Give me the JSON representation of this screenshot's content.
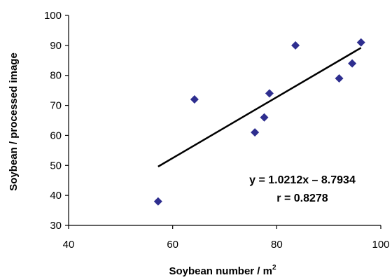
{
  "chart_data": {
    "type": "scatter",
    "xlabel": "Soybean number / m",
    "xlabel_sup": "2",
    "ylabel": "Soybean / processed image",
    "xlim": [
      40,
      100
    ],
    "ylim": [
      30,
      100
    ],
    "xticks": [
      40,
      60,
      80,
      100
    ],
    "yticks": [
      30,
      40,
      50,
      60,
      70,
      80,
      90,
      100
    ],
    "grid": false,
    "series": [
      {
        "x": [
          57.2,
          64.2,
          75.8,
          77.6,
          78.6,
          83.6,
          92.0,
          94.5,
          96.2
        ],
        "y": [
          38,
          72,
          61,
          66,
          74,
          90,
          79,
          84,
          91
        ]
      }
    ],
    "trendline": {
      "x": [
        57.2,
        96.2
      ],
      "y": [
        49.6,
        89.2
      ]
    },
    "annotations": [
      "y = 1.0212x – 8.7934",
      "r = 0.8278"
    ],
    "colors": {
      "marker": "#2E2E8F",
      "line": "#000000",
      "axis": "#000000"
    }
  }
}
